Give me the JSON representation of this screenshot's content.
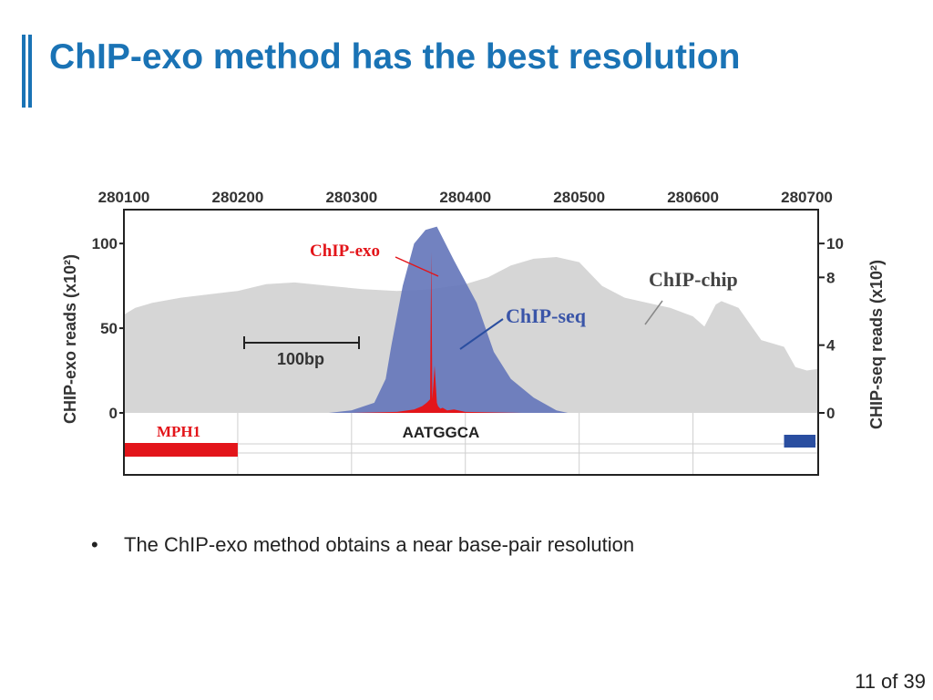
{
  "slide": {
    "title": "ChIP-exo method has the best resolution",
    "bullet": "The ChIP-exo method obtains a near base-pair resolution",
    "page": "11 of 39"
  },
  "colors": {
    "title": "#1a73b5",
    "chip_exo": "#e3151a",
    "chip_seq": "#6677bb",
    "chip_chip": "#d6d6d6",
    "gene_right": "#2a4ea0"
  },
  "chart_data": {
    "type": "area",
    "x_tick_labels": [
      "280100",
      "280200",
      "280300",
      "280400",
      "280500",
      "280600",
      "280700"
    ],
    "x_ticks": [
      280100,
      280200,
      280300,
      280400,
      280500,
      280600,
      280700
    ],
    "xlim": [
      280100,
      280710
    ],
    "left_axis": {
      "label": "CHIP-exo reads (x10²)",
      "ticks": [
        0,
        50,
        100
      ],
      "tick_labels": [
        "0",
        "50",
        "100"
      ],
      "ylim": [
        0,
        120
      ]
    },
    "right_axis": {
      "label": "CHIP-seq reads (x10²)",
      "ticks": [
        0,
        4,
        8,
        10
      ],
      "tick_labels": [
        "0",
        "4",
        "8",
        "10"
      ],
      "ylim": [
        0,
        12
      ]
    },
    "series": [
      {
        "name": "ChIP-chip",
        "axis": "right",
        "x": [
          280100,
          280110,
          280125,
          280150,
          280175,
          280200,
          280225,
          280250,
          280280,
          280310,
          280340,
          280370,
          280400,
          280420,
          280440,
          280460,
          280480,
          280500,
          280520,
          280540,
          280560,
          280580,
          280600,
          280610,
          280620,
          280625,
          280640,
          280660,
          280680,
          280690,
          280700,
          280710
        ],
        "y": [
          5.8,
          6.2,
          6.5,
          6.8,
          7.0,
          7.2,
          7.6,
          7.7,
          7.5,
          7.3,
          7.2,
          7.3,
          7.6,
          8.0,
          8.7,
          9.1,
          9.2,
          8.9,
          7.5,
          6.8,
          6.5,
          6.2,
          5.7,
          5.1,
          6.4,
          6.6,
          6.2,
          4.3,
          3.9,
          2.7,
          2.5,
          2.6
        ]
      },
      {
        "name": "ChIP-seq",
        "axis": "right",
        "x": [
          280280,
          280300,
          280320,
          280330,
          280335,
          280345,
          280355,
          280365,
          280375,
          280390,
          280410,
          280425,
          280440,
          280460,
          280480,
          280490
        ],
        "y": [
          0,
          0.15,
          0.6,
          2.0,
          4.0,
          7.5,
          10.0,
          10.8,
          11.0,
          9.0,
          6.5,
          3.6,
          2.0,
          0.9,
          0.15,
          0
        ]
      },
      {
        "name": "ChIP-exo",
        "axis": "left",
        "x": [
          280300,
          280340,
          280355,
          280362,
          280366,
          280369,
          280370,
          280371,
          280373,
          280375,
          280376,
          280378,
          280380,
          280384,
          280390,
          280400,
          280450
        ],
        "y": [
          0,
          0.6,
          2.0,
          4.0,
          6.0,
          8.0,
          95.0,
          8.0,
          28.0,
          6.0,
          4.0,
          2.5,
          3.0,
          1.5,
          2.0,
          0.6,
          0
        ]
      }
    ],
    "annotations": [
      "ChIP-exo",
      "ChIP-seq",
      "ChIP-chip"
    ],
    "scale_bar": "100bp",
    "track": {
      "gene_label": "MPH1",
      "motif": "AATGGCA",
      "gene_left_x": [
        280100,
        280200
      ],
      "gene_right_x": [
        280680,
        280710
      ]
    }
  }
}
